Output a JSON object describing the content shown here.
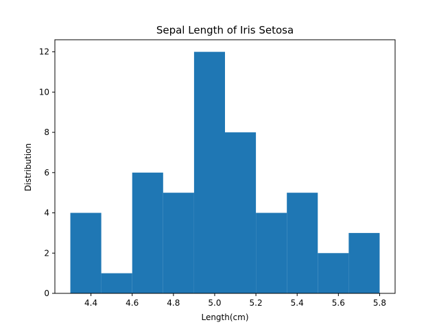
{
  "chart_data": {
    "type": "bar",
    "title": "Sepal Length of Iris Setosa",
    "xlabel": "Length(cm)",
    "ylabel": "Distribution",
    "bin_edges": [
      4.3,
      4.45,
      4.6,
      4.75,
      4.9,
      5.05,
      5.2,
      5.35,
      5.5,
      5.65,
      5.8
    ],
    "values": [
      4,
      1,
      6,
      5,
      12,
      8,
      4,
      5,
      2,
      3
    ],
    "xlim": [
      4.225,
      5.875
    ],
    "ylim": [
      0,
      12.6
    ],
    "xticks": [
      4.4,
      4.6,
      4.8,
      5.0,
      5.2,
      5.4,
      5.6,
      5.8
    ],
    "xtick_labels": [
      "4.4",
      "4.6",
      "4.8",
      "5.0",
      "5.2",
      "5.4",
      "5.6",
      "5.8"
    ],
    "yticks": [
      0,
      2,
      4,
      6,
      8,
      10,
      12
    ],
    "ytick_labels": [
      "0",
      "2",
      "4",
      "6",
      "8",
      "10",
      "12"
    ],
    "bar_color": "#1f77b4",
    "grid": false
  }
}
